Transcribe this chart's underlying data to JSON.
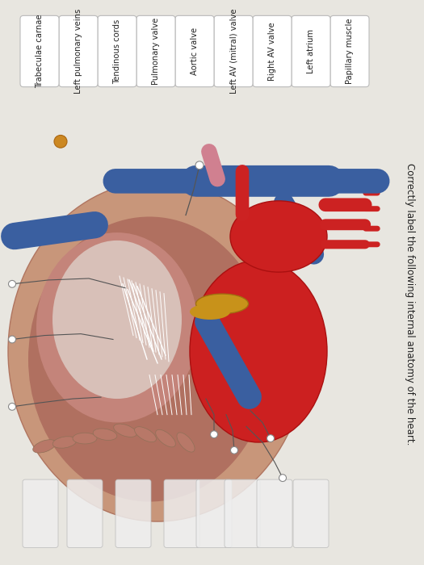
{
  "title": "Correctly label the following internal anatomy of the heart.",
  "bg_color": "#d0cfc8",
  "labels_right_to_left": [
    "Papillary muscle",
    "Left atrium",
    "Right AV valve",
    "Left AV (mitral) valve",
    "Aortic valve",
    "Pulmonary valve",
    "Tendinous cords",
    "Left pulmonary veins",
    "Trabeculae carnae"
  ],
  "label_box_color": "#ffffff",
  "label_text_color": "#222222",
  "answer_box_color": "#eeeeee",
  "title_color": "#222222",
  "title_fontsize": 8.5,
  "label_fontsize": 7.2,
  "bg_light": "#e8e6e0"
}
